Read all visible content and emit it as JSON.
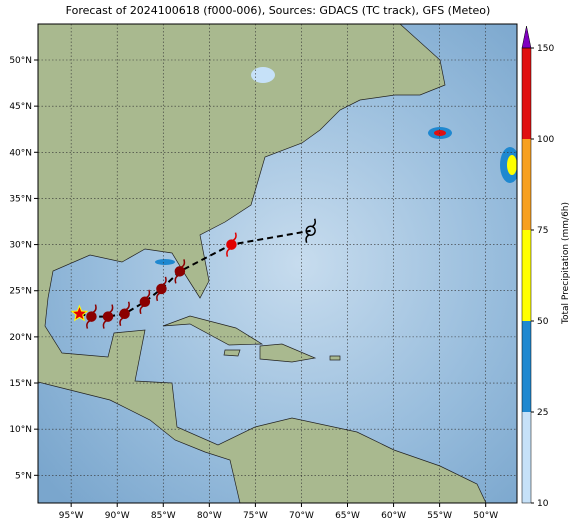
{
  "chart_data": {
    "type": "map",
    "title": "Forecast of 2024100618 (f000-006), Sources: GDACS (TC track), GFS (Meteo)",
    "xlim": [
      -98.6,
      -46.6
    ],
    "ylim": [
      2.0,
      53.9
    ],
    "xticks": [
      {
        "value": -95,
        "label": "95°W"
      },
      {
        "value": -90,
        "label": "90°W"
      },
      {
        "value": -85,
        "label": "85°W"
      },
      {
        "value": -80,
        "label": "80°W"
      },
      {
        "value": -75,
        "label": "75°W"
      },
      {
        "value": -70,
        "label": "70°W"
      },
      {
        "value": -65,
        "label": "65°W"
      },
      {
        "value": -60,
        "label": "60°W"
      },
      {
        "value": -55,
        "label": "55°W"
      },
      {
        "value": -50,
        "label": "50°W"
      }
    ],
    "yticks": [
      {
        "value": 5,
        "label": "5°N"
      },
      {
        "value": 10,
        "label": "10°N"
      },
      {
        "value": 15,
        "label": "15°N"
      },
      {
        "value": 20,
        "label": "20°N"
      },
      {
        "value": 25,
        "label": "25°N"
      },
      {
        "value": 30,
        "label": "30°N"
      },
      {
        "value": 35,
        "label": "35°N"
      },
      {
        "value": 40,
        "label": "40°N"
      },
      {
        "value": 45,
        "label": "45°N"
      },
      {
        "value": 50,
        "label": "50°N"
      }
    ],
    "grid": true,
    "track": {
      "lon": [
        -94.1,
        -92.8,
        -91.0,
        -89.2,
        -87.0,
        -85.2,
        -83.2,
        -77.6,
        -69.0
      ],
      "lat": [
        22.5,
        22.2,
        22.2,
        22.5,
        23.8,
        25.2,
        27.1,
        30.0,
        31.5
      ],
      "colors": [
        "#e00000",
        "#8b0000",
        "#8b0000",
        "#8b0000",
        "#8b0000",
        "#8b0000",
        "#8b0000",
        "#e00000",
        "#ffffff"
      ]
    },
    "colorbar": {
      "label": "Total Precipitation (mm/6h)",
      "ticks": [
        10,
        25,
        50,
        75,
        100,
        150
      ],
      "colors": [
        "#c6e1f8",
        "#1f88d0",
        "#ffff00",
        "#f7a020",
        "#e01010"
      ],
      "over_color": "#8000c0"
    }
  }
}
